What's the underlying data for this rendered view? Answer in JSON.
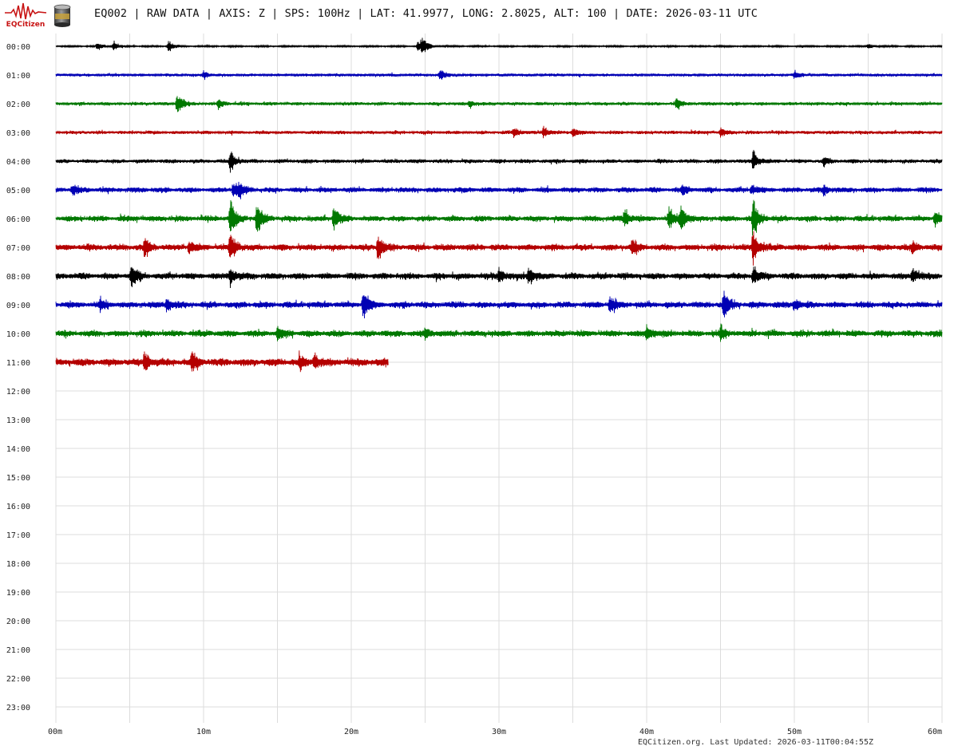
{
  "header": {
    "logo_text": "EQCitizen",
    "title": "EQ002 | RAW DATA | AXIS: Z | SPS: 100Hz | LAT: 41.9977, LONG: 2.8025, ALT: 100 | DATE: 2026-03-11 UTC",
    "brand_color": "#c81414"
  },
  "footer": {
    "text": "EQCitizen.org. Last Updated: 2026-03-11T00:04:55Z"
  },
  "chart_data": {
    "type": "line",
    "subtype": "helicorder",
    "title": "",
    "xlabel": "",
    "ylabel": "",
    "x_ticks": [
      "00m",
      "10m",
      "20m",
      "30m",
      "40m",
      "50m",
      "60m"
    ],
    "xlim": [
      0,
      60
    ],
    "x_unit": "minutes",
    "y_labels": [
      "00:00",
      "01:00",
      "02:00",
      "03:00",
      "04:00",
      "05:00",
      "06:00",
      "07:00",
      "08:00",
      "09:00",
      "10:00",
      "11:00",
      "12:00",
      "13:00",
      "14:00",
      "15:00",
      "16:00",
      "17:00",
      "18:00",
      "19:00",
      "20:00",
      "21:00",
      "22:00",
      "23:00"
    ],
    "grid": true,
    "color_cycle": [
      "#000000",
      "#0000b4",
      "#007800",
      "#b40000"
    ],
    "traces": [
      {
        "hour": "00:00",
        "color": "#000000",
        "duration_min": 60,
        "noise": 1.5,
        "events": [
          {
            "t": 2.8,
            "amp": 7
          },
          {
            "t": 3.9,
            "amp": 8
          },
          {
            "t": 7.6,
            "amp": 9
          },
          {
            "t": 24.5,
            "amp": 10
          },
          {
            "t": 24.8,
            "amp": 14
          },
          {
            "t": 55.0,
            "amp": 5
          }
        ]
      },
      {
        "hour": "01:00",
        "color": "#0000b4",
        "duration_min": 60,
        "noise": 2.5,
        "events": [
          {
            "t": 10.0,
            "amp": 6
          },
          {
            "t": 26.0,
            "amp": 9
          },
          {
            "t": 50.0,
            "amp": 6
          }
        ]
      },
      {
        "hour": "02:00",
        "color": "#007800",
        "duration_min": 60,
        "noise": 3,
        "events": [
          {
            "t": 8.2,
            "amp": 18
          },
          {
            "t": 11.0,
            "amp": 8
          },
          {
            "t": 28.0,
            "amp": 6
          },
          {
            "t": 42.0,
            "amp": 9
          }
        ]
      },
      {
        "hour": "03:00",
        "color": "#b40000",
        "duration_min": 60,
        "noise": 3,
        "events": [
          {
            "t": 31.0,
            "amp": 9
          },
          {
            "t": 33.0,
            "amp": 10
          },
          {
            "t": 35.0,
            "amp": 9
          },
          {
            "t": 45.0,
            "amp": 7
          }
        ]
      },
      {
        "hour": "04:00",
        "color": "#000000",
        "duration_min": 60,
        "noise": 3.5,
        "events": [
          {
            "t": 11.8,
            "amp": 18
          },
          {
            "t": 47.2,
            "amp": 18
          },
          {
            "t": 52.0,
            "amp": 7
          }
        ]
      },
      {
        "hour": "05:00",
        "color": "#0000b4",
        "duration_min": 60,
        "noise": 4.5,
        "events": [
          {
            "t": 1.1,
            "amp": 9
          },
          {
            "t": 12.0,
            "amp": 12
          },
          {
            "t": 12.4,
            "amp": 10
          },
          {
            "t": 42.4,
            "amp": 9
          },
          {
            "t": 47.1,
            "amp": 8
          },
          {
            "t": 52.0,
            "amp": 7
          }
        ]
      },
      {
        "hour": "06:00",
        "color": "#007800",
        "duration_min": 60,
        "noise": 5,
        "events": [
          {
            "t": 11.8,
            "amp": 34
          },
          {
            "t": 13.6,
            "amp": 26
          },
          {
            "t": 18.8,
            "amp": 20
          },
          {
            "t": 38.5,
            "amp": 14
          },
          {
            "t": 41.5,
            "amp": 18
          },
          {
            "t": 42.3,
            "amp": 24
          },
          {
            "t": 47.2,
            "amp": 34
          },
          {
            "t": 59.5,
            "amp": 14
          }
        ]
      },
      {
        "hour": "07:00",
        "color": "#b40000",
        "duration_min": 60,
        "noise": 5.5,
        "events": [
          {
            "t": 6.0,
            "amp": 14
          },
          {
            "t": 9.0,
            "amp": 11
          },
          {
            "t": 11.8,
            "amp": 26
          },
          {
            "t": 21.8,
            "amp": 22
          },
          {
            "t": 39.0,
            "amp": 12
          },
          {
            "t": 47.2,
            "amp": 30
          },
          {
            "t": 58.0,
            "amp": 9
          }
        ]
      },
      {
        "hour": "08:00",
        "color": "#000000",
        "duration_min": 60,
        "noise": 5.5,
        "events": [
          {
            "t": 5.1,
            "amp": 20
          },
          {
            "t": 11.8,
            "amp": 14
          },
          {
            "t": 30.0,
            "amp": 12
          },
          {
            "t": 32.0,
            "amp": 14
          },
          {
            "t": 47.2,
            "amp": 16
          },
          {
            "t": 58.0,
            "amp": 12
          }
        ]
      },
      {
        "hour": "09:00",
        "color": "#0000b4",
        "duration_min": 60,
        "noise": 5.5,
        "events": [
          {
            "t": 3.0,
            "amp": 9
          },
          {
            "t": 7.5,
            "amp": 11
          },
          {
            "t": 20.8,
            "amp": 28
          },
          {
            "t": 37.5,
            "amp": 14
          },
          {
            "t": 45.2,
            "amp": 22
          },
          {
            "t": 50.0,
            "amp": 9
          }
        ]
      },
      {
        "hour": "10:00",
        "color": "#007800",
        "duration_min": 60,
        "noise": 5.5,
        "events": [
          {
            "t": 15.0,
            "amp": 12
          },
          {
            "t": 25.0,
            "amp": 10
          },
          {
            "t": 40.0,
            "amp": 14
          },
          {
            "t": 45.0,
            "amp": 10
          }
        ]
      },
      {
        "hour": "11:00",
        "color": "#b40000",
        "duration_min": 22.5,
        "noise": 6.5,
        "events": [
          {
            "t": 6.0,
            "amp": 18
          },
          {
            "t": 9.2,
            "amp": 16
          },
          {
            "t": 16.5,
            "amp": 10
          },
          {
            "t": 17.5,
            "amp": 12
          }
        ]
      }
    ]
  }
}
